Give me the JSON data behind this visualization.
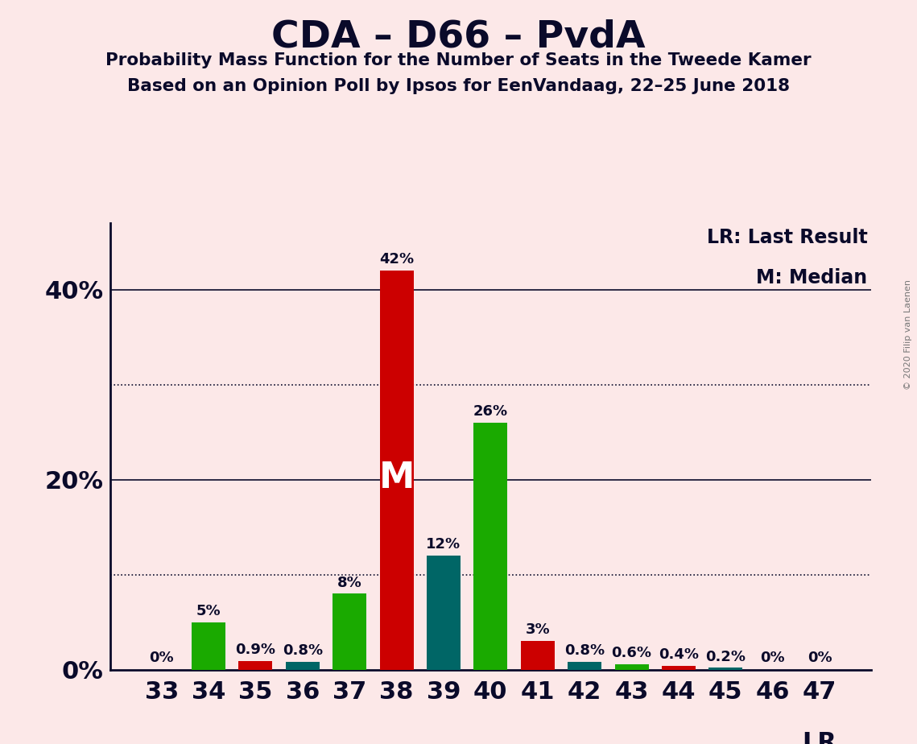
{
  "title": "CDA – D66 – PvdA",
  "subtitle1": "Probability Mass Function for the Number of Seats in the Tweede Kamer",
  "subtitle2": "Based on an Opinion Poll by Ipsos for EenVandaag, 22–25 June 2018",
  "copyright": "© 2020 Filip van Laenen",
  "legend_lr": "LR: Last Result",
  "legend_m": "M: Median",
  "lr_label": "LR",
  "background_color": "#fce8e8",
  "bar_color_green": "#1aaa00",
  "bar_color_red": "#cc0000",
  "bar_color_dark_teal": "#006666",
  "axis_color": "#0a0a2a",
  "text_color": "#0a0a2a",
  "categories": [
    33,
    34,
    35,
    36,
    37,
    38,
    39,
    40,
    41,
    42,
    43,
    44,
    45,
    46,
    47
  ],
  "values": [
    0.0,
    5.0,
    0.9,
    0.8,
    8.0,
    42.0,
    12.0,
    26.0,
    3.0,
    0.8,
    0.6,
    0.4,
    0.2,
    0.0,
    0.0
  ],
  "bar_colors": [
    "green",
    "green",
    "red",
    "teal",
    "green",
    "red",
    "teal",
    "green",
    "red",
    "teal",
    "green",
    "red",
    "teal",
    "green",
    "green"
  ],
  "labels": [
    "0%",
    "5%",
    "0.9%",
    "0.8%",
    "8%",
    "42%",
    "12%",
    "26%",
    "3%",
    "0.8%",
    "0.6%",
    "0.4%",
    "0.2%",
    "0%",
    "0%"
  ],
  "show_label": [
    true,
    true,
    true,
    true,
    true,
    true,
    true,
    true,
    true,
    true,
    true,
    true,
    true,
    true,
    true
  ],
  "median_bar": 38,
  "median_label": "M",
  "ylim": [
    0,
    47
  ],
  "yticks": [
    0,
    20,
    40
  ],
  "ytick_labels": [
    "0%",
    "20%",
    "40%"
  ],
  "dotted_lines": [
    10,
    30
  ],
  "solid_lines": [
    20,
    40
  ],
  "figsize": [
    11.39,
    9.24
  ],
  "dpi": 100
}
